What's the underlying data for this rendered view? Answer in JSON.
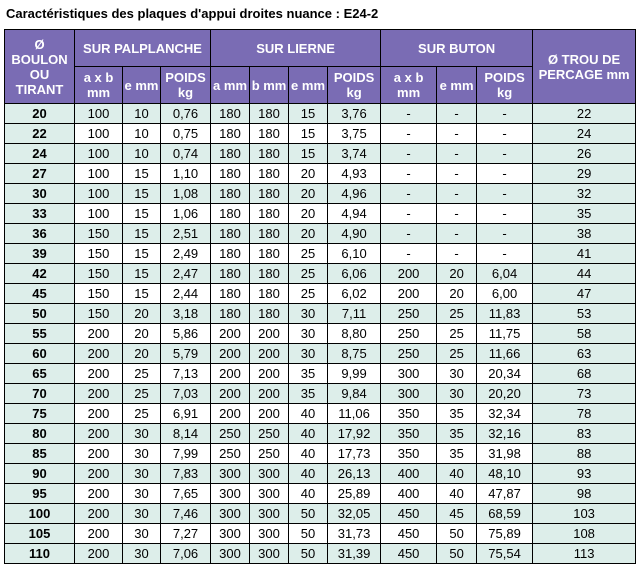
{
  "title": "Caractéristiques des plaques d'appui droites nuance : E24-2",
  "header": {
    "col_bolt": "Ø BOULON OU TIRANT",
    "group_palplanche": "SUR PALPLANCHE",
    "group_lierne": "SUR LIERNE",
    "group_buton": "SUR BUTON",
    "col_hole": "Ø TROU DE PERCAGE mm",
    "sub": {
      "p_axb": "a x b mm",
      "p_e": "e mm",
      "p_poids": "POIDS kg",
      "l_a": "a mm",
      "l_b": "b mm",
      "l_e": "e mm",
      "l_poids": "POIDS kg",
      "b_axb": "a x b mm",
      "b_e": "e mm",
      "b_poids": "POIDS kg"
    }
  },
  "rows": [
    [
      "20",
      "100",
      "10",
      "0,76",
      "180",
      "180",
      "15",
      "3,76",
      "-",
      "-",
      "-",
      "22"
    ],
    [
      "22",
      "100",
      "10",
      "0,75",
      "180",
      "180",
      "15",
      "3,75",
      "-",
      "-",
      "-",
      "24"
    ],
    [
      "24",
      "100",
      "10",
      "0,74",
      "180",
      "180",
      "15",
      "3,74",
      "-",
      "-",
      "-",
      "26"
    ],
    [
      "27",
      "100",
      "15",
      "1,10",
      "180",
      "180",
      "20",
      "4,93",
      "-",
      "-",
      "-",
      "29"
    ],
    [
      "30",
      "100",
      "15",
      "1,08",
      "180",
      "180",
      "20",
      "4,96",
      "-",
      "-",
      "-",
      "32"
    ],
    [
      "33",
      "100",
      "15",
      "1,06",
      "180",
      "180",
      "20",
      "4,94",
      "-",
      "-",
      "-",
      "35"
    ],
    [
      "36",
      "150",
      "15",
      "2,51",
      "180",
      "180",
      "20",
      "4,90",
      "-",
      "-",
      "-",
      "38"
    ],
    [
      "39",
      "150",
      "15",
      "2,49",
      "180",
      "180",
      "25",
      "6,10",
      "-",
      "-",
      "-",
      "41"
    ],
    [
      "42",
      "150",
      "15",
      "2,47",
      "180",
      "180",
      "25",
      "6,06",
      "200",
      "20",
      "6,04",
      "44"
    ],
    [
      "45",
      "150",
      "15",
      "2,44",
      "180",
      "180",
      "25",
      "6,02",
      "200",
      "20",
      "6,00",
      "47"
    ],
    [
      "50",
      "150",
      "20",
      "3,18",
      "180",
      "180",
      "30",
      "7,11",
      "250",
      "25",
      "11,83",
      "53"
    ],
    [
      "55",
      "200",
      "20",
      "5,86",
      "200",
      "200",
      "30",
      "8,80",
      "250",
      "25",
      "11,75",
      "58"
    ],
    [
      "60",
      "200",
      "20",
      "5,79",
      "200",
      "200",
      "30",
      "8,75",
      "250",
      "25",
      "11,66",
      "63"
    ],
    [
      "65",
      "200",
      "25",
      "7,13",
      "200",
      "200",
      "35",
      "9,99",
      "300",
      "30",
      "20,34",
      "68"
    ],
    [
      "70",
      "200",
      "25",
      "7,03",
      "200",
      "200",
      "35",
      "9,84",
      "300",
      "30",
      "20,20",
      "73"
    ],
    [
      "75",
      "200",
      "25",
      "6,91",
      "200",
      "200",
      "40",
      "11,06",
      "350",
      "35",
      "32,34",
      "78"
    ],
    [
      "80",
      "200",
      "30",
      "8,14",
      "250",
      "250",
      "40",
      "17,92",
      "350",
      "35",
      "32,16",
      "83"
    ],
    [
      "85",
      "200",
      "30",
      "7,99",
      "250",
      "250",
      "40",
      "17,73",
      "350",
      "35",
      "31,98",
      "88"
    ],
    [
      "90",
      "200",
      "30",
      "7,83",
      "300",
      "300",
      "40",
      "26,13",
      "400",
      "40",
      "48,10",
      "93"
    ],
    [
      "95",
      "200",
      "30",
      "7,65",
      "300",
      "300",
      "40",
      "25,89",
      "400",
      "40",
      "47,87",
      "98"
    ],
    [
      "100",
      "200",
      "30",
      "7,46",
      "300",
      "300",
      "50",
      "32,05",
      "450",
      "45",
      "68,59",
      "103"
    ],
    [
      "105",
      "200",
      "30",
      "7,27",
      "300",
      "300",
      "50",
      "31,73",
      "450",
      "50",
      "75,89",
      "108"
    ],
    [
      "110",
      "200",
      "30",
      "7,06",
      "300",
      "300",
      "50",
      "31,39",
      "450",
      "50",
      "75,54",
      "113"
    ]
  ],
  "colors": {
    "header_bg": "#7a6cb4",
    "row_tint": "#ddeeea"
  }
}
